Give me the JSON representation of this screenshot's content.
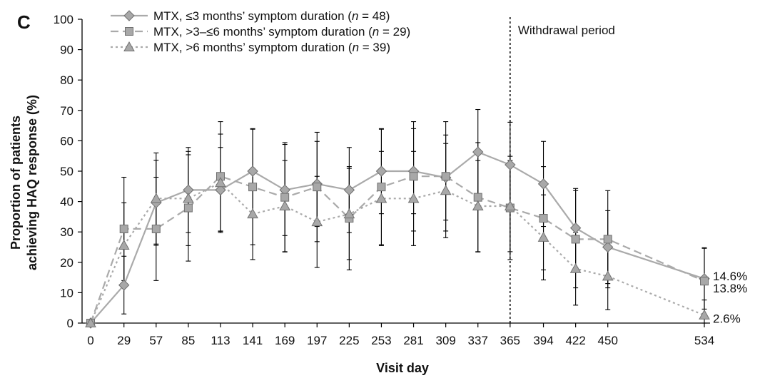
{
  "chart_data": {
    "type": "line",
    "panel_label": "C",
    "xlabel": "Visit day",
    "ylabel_line1": "Proportion of patients",
    "ylabel_line2": "achieving HAQ response (%)",
    "x": [
      0,
      29,
      57,
      85,
      113,
      141,
      169,
      197,
      225,
      253,
      281,
      309,
      337,
      365,
      394,
      422,
      450,
      534
    ],
    "x_tick_labels": [
      "0",
      "29",
      "57",
      "85",
      "113",
      "141",
      "169",
      "197",
      "225",
      "253",
      "281",
      "309",
      "337",
      "365",
      "394",
      "422",
      "450",
      "534"
    ],
    "ylim": [
      0,
      100
    ],
    "y_ticks": [
      0,
      10,
      20,
      30,
      40,
      50,
      60,
      70,
      80,
      90,
      100
    ],
    "y_tick_labels": [
      "0",
      "10",
      "20",
      "30",
      "40",
      "50",
      "60",
      "70",
      "80",
      "90",
      "100"
    ],
    "series": [
      {
        "legend_prefix": "MTX, ≤3 months’ symptom duration (",
        "legend_n": "n",
        "legend_suffix": " = 48)",
        "marker": "diamond",
        "dash": "solid",
        "color": "#aaaaaa",
        "values": [
          0,
          12.5,
          39.6,
          43.8,
          43.8,
          50.0,
          43.8,
          45.8,
          43.8,
          50.0,
          50.0,
          47.9,
          56.3,
          52.1,
          45.8,
          31.3,
          25.0,
          14.6
        ],
        "err": [
          0,
          9.5,
          14,
          14,
          14,
          14,
          15,
          14,
          14,
          14,
          14,
          14,
          14,
          14,
          14,
          13,
          12,
          10
        ]
      },
      {
        "legend_prefix": "MTX, >3–≤6 months’ symptom duration (",
        "legend_n": "n",
        "legend_suffix": " = 29)",
        "marker": "square",
        "dash": "dashed",
        "color": "#aaaaaa",
        "values": [
          0,
          31.0,
          31.0,
          37.9,
          48.3,
          44.8,
          41.4,
          44.8,
          34.5,
          44.8,
          48.3,
          48.3,
          41.4,
          37.9,
          34.5,
          27.6,
          27.6,
          13.8
        ],
        "err": [
          0,
          17,
          17,
          17.5,
          18,
          19,
          18,
          18,
          17,
          19,
          18,
          18,
          18,
          17,
          17,
          16,
          16,
          11
        ]
      },
      {
        "legend_prefix": "MTX, >6 months’ symptom duration (",
        "legend_n": "n",
        "legend_suffix": " = 39)",
        "marker": "triangle",
        "dash": "dotted",
        "color": "#aaaaaa",
        "values": [
          0,
          25.6,
          41.0,
          41.0,
          46.2,
          35.9,
          38.5,
          33.3,
          35.9,
          41.0,
          41.0,
          43.6,
          38.5,
          38.5,
          28.2,
          17.9,
          15.4,
          2.6
        ],
        "err": [
          0,
          14,
          15,
          15.5,
          16,
          15,
          15,
          15,
          15,
          15.5,
          15.5,
          15.5,
          15,
          15,
          14,
          12,
          11,
          5
        ]
      }
    ],
    "annotations": {
      "withdrawal_x": 365,
      "withdrawal_label": "Withdrawal period",
      "end_labels": [
        "14.6%",
        "13.8%",
        "2.6%"
      ],
      "end_label_values": [
        15.5,
        11.5,
        1.5
      ]
    },
    "grid": false,
    "legend_position": "top-left"
  }
}
